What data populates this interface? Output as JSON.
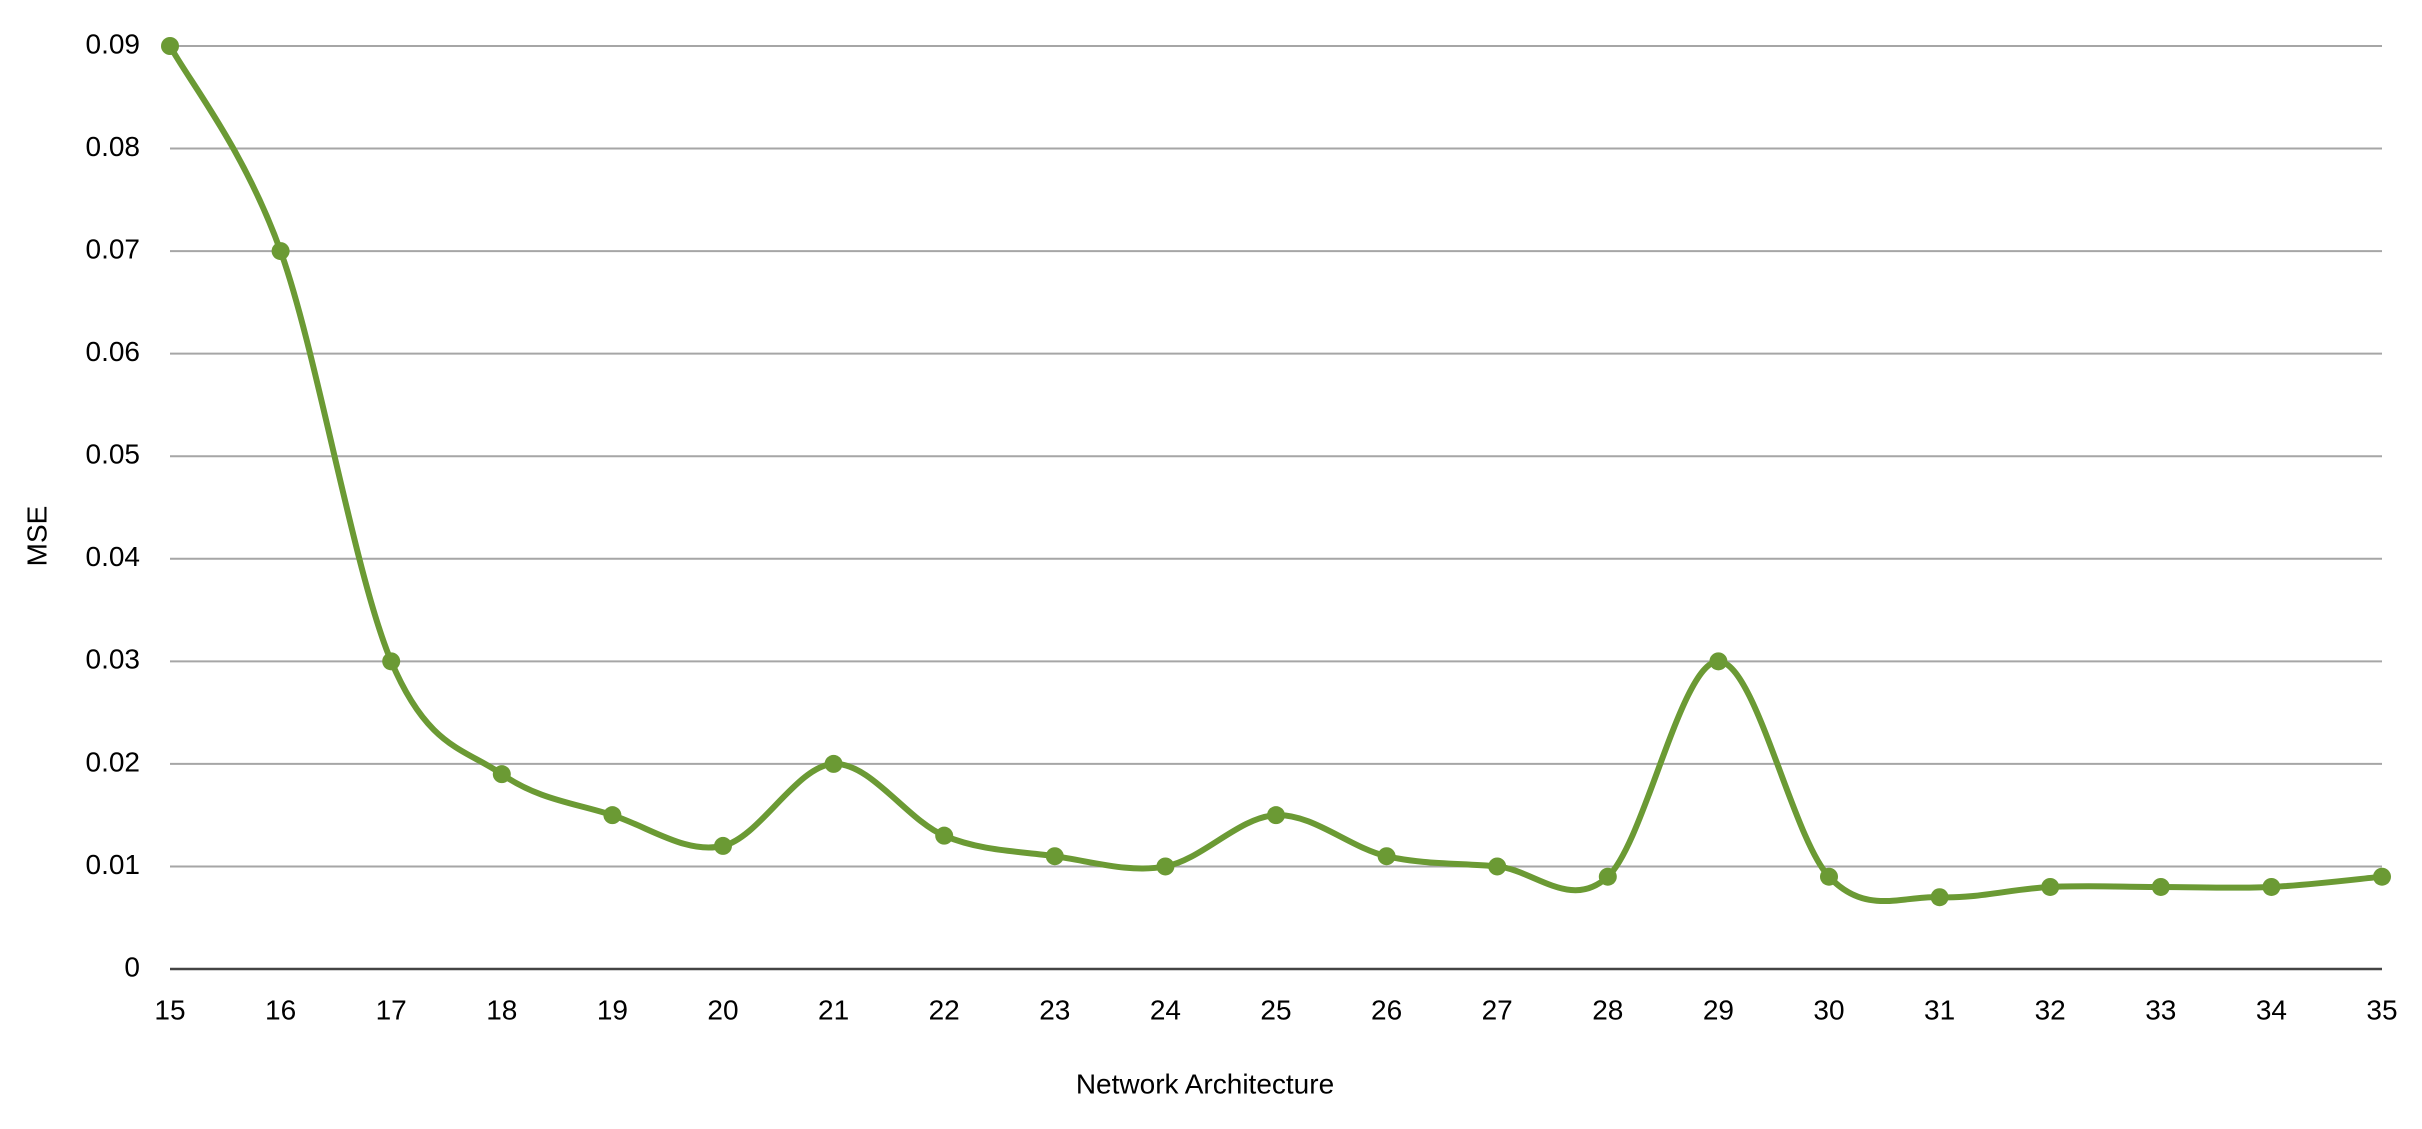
{
  "chart_data": {
    "type": "line",
    "x_label": "Network Architecture",
    "y_label": "MSE",
    "x": [
      15,
      16,
      17,
      18,
      19,
      20,
      21,
      22,
      23,
      24,
      25,
      26,
      27,
      28,
      29,
      30,
      31,
      32,
      33,
      34,
      35
    ],
    "series": [
      {
        "name": "MSE",
        "color": "#6b9a34",
        "values": [
          0.09,
          0.07,
          0.03,
          0.019,
          0.015,
          0.012,
          0.02,
          0.013,
          0.011,
          0.01,
          0.015,
          0.011,
          0.01,
          0.009,
          0.03,
          0.009,
          0.007,
          0.008,
          0.008,
          0.008,
          0.009
        ]
      }
    ],
    "xlim": [
      15,
      35
    ],
    "xticks": [
      15,
      16,
      17,
      18,
      19,
      20,
      21,
      22,
      23,
      24,
      25,
      26,
      27,
      28,
      29,
      30,
      31,
      32,
      33,
      34,
      35
    ],
    "ylim": [
      0,
      0.09
    ],
    "yticks": [
      0,
      0.01,
      0.02,
      0.03,
      0.04,
      0.05,
      0.06,
      0.07,
      0.08,
      0.09
    ],
    "grid": true,
    "smooth": true,
    "markers": true
  }
}
